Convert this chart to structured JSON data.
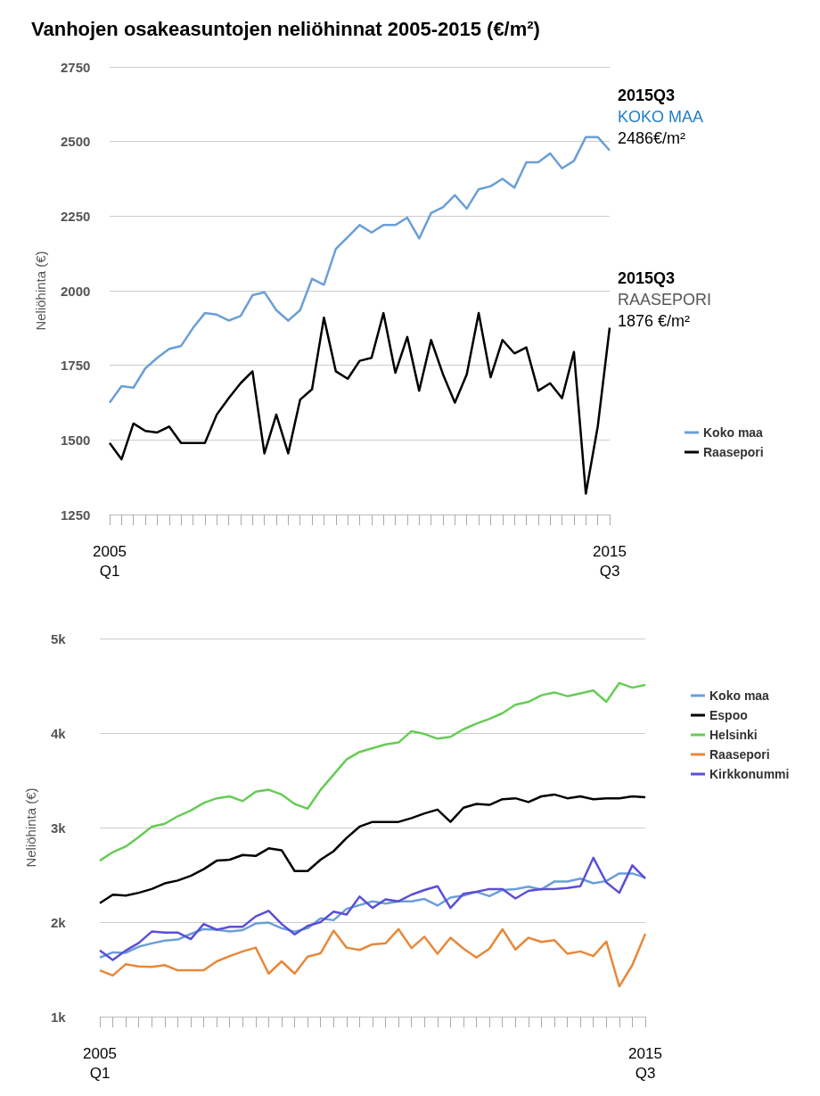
{
  "chart_data": [
    {
      "type": "line",
      "title": "Vanhojen osakeasuntojen neliöhinnat 2005-2015 (€/m²)",
      "ylabel": "Neliöhinta (€)",
      "categories": [
        "2005\nQ1",
        null,
        null,
        null,
        null,
        null,
        null,
        null,
        null,
        null,
        null,
        null,
        null,
        null,
        null,
        null,
        null,
        null,
        null,
        null,
        null,
        null,
        null,
        null,
        null,
        null,
        null,
        null,
        null,
        null,
        null,
        null,
        null,
        null,
        null,
        null,
        null,
        null,
        null,
        null,
        null,
        null,
        "2015\nQ3"
      ],
      "series": [
        {
          "name": "Koko maa",
          "color": "#6a9fd8",
          "values": [
            1625,
            1680,
            1675,
            1740,
            1775,
            1805,
            1815,
            1875,
            1925,
            1920,
            1900,
            1915,
            1985,
            1995,
            1935,
            1900,
            1935,
            2040,
            2020,
            2140,
            2180,
            2220,
            2195,
            2220,
            2220,
            2245,
            2175,
            2260,
            2280,
            2320,
            2275,
            2340,
            2350,
            2375,
            2345,
            2430,
            2430,
            2460,
            2410,
            2435,
            2515,
            2515,
            2470
          ]
        },
        {
          "name": "Raasepori",
          "color": "#000000",
          "values": [
            1490,
            1435,
            1555,
            1530,
            1525,
            1545,
            1490,
            1490,
            1490,
            1585,
            1640,
            1690,
            1730,
            1455,
            1585,
            1455,
            1635,
            1670,
            1910,
            1730,
            1705,
            1765,
            1775,
            1925,
            1725,
            1845,
            1665,
            1835,
            1720,
            1625,
            1720,
            1925,
            1710,
            1835,
            1790,
            1810,
            1665,
            1690,
            1640,
            1795,
            1320,
            1545,
            1876
          ]
        }
      ],
      "ylim": [
        1250,
        2750
      ],
      "yticks": [
        1250,
        1500,
        1750,
        2000,
        2250,
        2500,
        2750
      ],
      "grid": "y",
      "legend": "right",
      "marker": "none",
      "line_style": "solid",
      "annotations": [
        "2015Q3\nKOKO MAA\n2486€/m²",
        "2015Q3\nRAASEPORI\n1876 €/m²"
      ]
    },
    {
      "type": "line",
      "ylabel": "Neliöhinta (€)",
      "categories": [
        "2005\nQ1",
        null,
        null,
        null,
        null,
        null,
        null,
        null,
        null,
        null,
        null,
        null,
        null,
        null,
        null,
        null,
        null,
        null,
        null,
        null,
        null,
        null,
        null,
        null,
        null,
        null,
        null,
        null,
        null,
        null,
        null,
        null,
        null,
        null,
        null,
        null,
        null,
        null,
        null,
        null,
        null,
        null,
        "2015\nQ3"
      ],
      "series": [
        {
          "name": "Koko maa",
          "color": "#6a9fd8",
          "values": [
            1625,
            1680,
            1675,
            1740,
            1775,
            1805,
            1815,
            1875,
            1925,
            1920,
            1900,
            1915,
            1985,
            1995,
            1935,
            1900,
            1935,
            2040,
            2020,
            2140,
            2180,
            2220,
            2195,
            2220,
            2220,
            2245,
            2175,
            2260,
            2280,
            2320,
            2275,
            2340,
            2350,
            2375,
            2345,
            2430,
            2430,
            2460,
            2410,
            2435,
            2515,
            2515,
            2470
          ]
        },
        {
          "name": "Espoo",
          "color": "#000000",
          "values": [
            2200,
            2290,
            2280,
            2310,
            2350,
            2410,
            2440,
            2490,
            2560,
            2650,
            2660,
            2710,
            2700,
            2780,
            2760,
            2540,
            2540,
            2660,
            2750,
            2890,
            3010,
            3060,
            3060,
            3060,
            3100,
            3150,
            3190,
            3060,
            3210,
            3250,
            3240,
            3300,
            3310,
            3270,
            3330,
            3350,
            3310,
            3330,
            3300,
            3310,
            3310,
            3330,
            3320
          ]
        },
        {
          "name": "Helsinki",
          "color": "#66cc55",
          "values": [
            2650,
            2740,
            2800,
            2900,
            3010,
            3040,
            3120,
            3180,
            3260,
            3310,
            3330,
            3280,
            3380,
            3400,
            3350,
            3250,
            3200,
            3400,
            3560,
            3720,
            3800,
            3840,
            3880,
            3900,
            4020,
            3990,
            3940,
            3960,
            4040,
            4100,
            4150,
            4210,
            4300,
            4330,
            4400,
            4430,
            4390,
            4420,
            4450,
            4330,
            4530,
            4480,
            4510
          ]
        },
        {
          "name": "Raasepori",
          "color": "#e8883a",
          "values": [
            1490,
            1435,
            1555,
            1530,
            1525,
            1545,
            1490,
            1490,
            1490,
            1585,
            1640,
            1690,
            1730,
            1455,
            1585,
            1455,
            1635,
            1670,
            1910,
            1730,
            1705,
            1765,
            1775,
            1925,
            1725,
            1845,
            1665,
            1835,
            1720,
            1625,
            1720,
            1925,
            1710,
            1835,
            1790,
            1810,
            1665,
            1690,
            1640,
            1795,
            1320,
            1545,
            1876
          ]
        },
        {
          "name": "Kirkkonummi",
          "color": "#5b4fd6",
          "values": [
            1700,
            1600,
            1700,
            1780,
            1900,
            1890,
            1890,
            1820,
            1980,
            1920,
            1950,
            1950,
            2060,
            2120,
            1980,
            1870,
            1960,
            2000,
            2110,
            2080,
            2270,
            2150,
            2240,
            2220,
            2290,
            2340,
            2380,
            2150,
            2300,
            2320,
            2350,
            2350,
            2250,
            2330,
            2350,
            2350,
            2360,
            2380,
            2680,
            2420,
            2310,
            2600,
            2460
          ]
        }
      ],
      "ylim": [
        1000,
        5000
      ],
      "yticks": [
        {
          "value": 1000,
          "label": "1k"
        },
        {
          "value": 2000,
          "label": "2k"
        },
        {
          "value": 3000,
          "label": "3k"
        },
        {
          "value": 4000,
          "label": "4k"
        },
        {
          "value": 5000,
          "label": "5k"
        }
      ],
      "grid": "y",
      "legend": "top right",
      "marker": "none",
      "line_style": "solid"
    }
  ]
}
